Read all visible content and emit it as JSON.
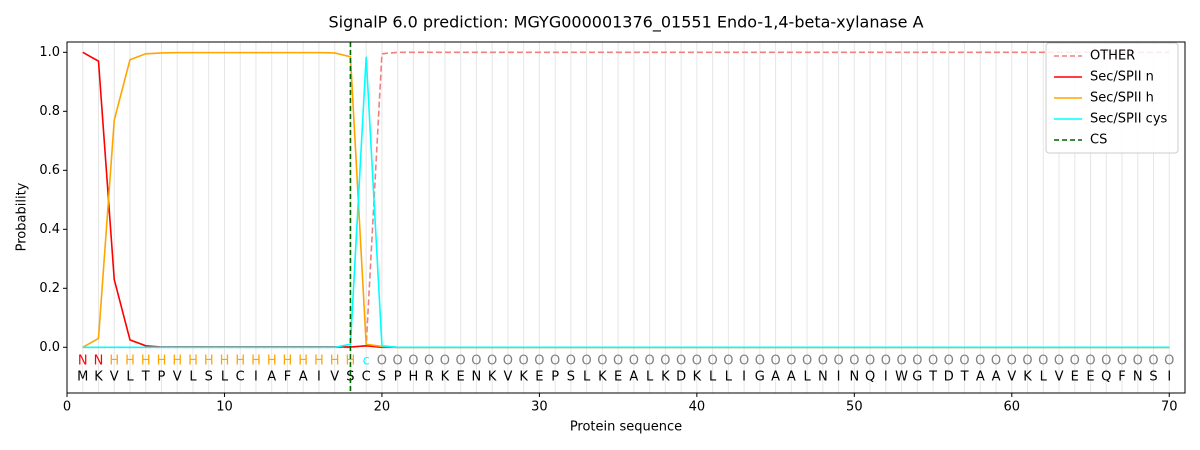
{
  "chart_data": {
    "type": "line",
    "title": "SignalP 6.0 prediction: MGYG000001376_01551 Endo-1,4-beta-xylanase A",
    "xlabel": "Protein sequence",
    "ylabel": "Probability",
    "x": [
      1,
      2,
      3,
      4,
      5,
      6,
      7,
      8,
      9,
      10,
      11,
      12,
      13,
      14,
      15,
      16,
      17,
      18,
      19,
      20,
      21,
      22,
      23,
      24,
      25,
      26,
      27,
      28,
      29,
      30,
      31,
      32,
      33,
      34,
      35,
      36,
      37,
      38,
      39,
      40,
      41,
      42,
      43,
      44,
      45,
      46,
      47,
      48,
      49,
      50,
      51,
      52,
      53,
      54,
      55,
      56,
      57,
      58,
      59,
      60,
      61,
      62,
      63,
      64,
      65,
      66,
      67,
      68,
      69,
      70
    ],
    "sequence": [
      "M",
      "K",
      "V",
      "L",
      "T",
      "P",
      "V",
      "L",
      "S",
      "L",
      "C",
      "I",
      "A",
      "F",
      "A",
      "I",
      "V",
      "S",
      "C",
      "S",
      "P",
      "H",
      "R",
      "K",
      "E",
      "N",
      "K",
      "V",
      "K",
      "E",
      "P",
      "S",
      "L",
      "K",
      "E",
      "A",
      "L",
      "K",
      "D",
      "K",
      "L",
      "L",
      "I",
      "G",
      "A",
      "A",
      "L",
      "N",
      "I",
      "N",
      "Q",
      "I",
      "W",
      "G",
      "T",
      "D",
      "T",
      "A",
      "A",
      "V",
      "K",
      "L",
      "V",
      "E",
      "E",
      "Q",
      "F",
      "N",
      "S",
      "I"
    ],
    "labels": [
      "N",
      "N",
      "H",
      "H",
      "H",
      "H",
      "H",
      "H",
      "H",
      "H",
      "H",
      "H",
      "H",
      "H",
      "H",
      "H",
      "H",
      "H",
      "c",
      "O",
      "O",
      "O",
      "O",
      "O",
      "O",
      "O",
      "O",
      "O",
      "O",
      "O",
      "O",
      "O",
      "O",
      "O",
      "O",
      "O",
      "O",
      "O",
      "O",
      "O",
      "O",
      "O",
      "O",
      "O",
      "O",
      "O",
      "O",
      "O",
      "O",
      "O",
      "O",
      "O",
      "O",
      "O",
      "O",
      "O",
      "O",
      "O",
      "O",
      "O",
      "O",
      "O",
      "O",
      "O",
      "O",
      "O",
      "O",
      "O",
      "O",
      "O"
    ],
    "label_colors": {
      "N": "red",
      "H": "orange",
      "c": "cyan",
      "O": "gray"
    },
    "series": [
      {
        "name": "OTHER",
        "color": "#f08080",
        "dash": true,
        "values": [
          0,
          0,
          0,
          0,
          0,
          0,
          0,
          0,
          0,
          0,
          0,
          0,
          0,
          0,
          0,
          0,
          0,
          0,
          0.005,
          0.995,
          1,
          1,
          1,
          1,
          1,
          1,
          1,
          1,
          1,
          1,
          1,
          1,
          1,
          1,
          1,
          1,
          1,
          1,
          1,
          1,
          1,
          1,
          1,
          1,
          1,
          1,
          1,
          1,
          1,
          1,
          1,
          1,
          1,
          1,
          1,
          1,
          1,
          1,
          1,
          1,
          1,
          1,
          1,
          1,
          1,
          1,
          1,
          1,
          1,
          1
        ]
      },
      {
        "name": "Sec/SPII n",
        "color": "#ff0000",
        "dash": false,
        "values": [
          1,
          0.97,
          0.23,
          0.025,
          0.005,
          0.001,
          0.001,
          0.001,
          0.001,
          0.001,
          0.001,
          0.001,
          0.001,
          0.001,
          0.001,
          0.001,
          0.001,
          0.001,
          0.005,
          0,
          0,
          0,
          0,
          0,
          0,
          0,
          0,
          0,
          0,
          0,
          0,
          0,
          0,
          0,
          0,
          0,
          0,
          0,
          0,
          0,
          0,
          0,
          0,
          0,
          0,
          0,
          0,
          0,
          0,
          0,
          0,
          0,
          0,
          0,
          0,
          0,
          0,
          0,
          0,
          0,
          0,
          0,
          0,
          0,
          0,
          0,
          0,
          0,
          0,
          0
        ]
      },
      {
        "name": "Sec/SPII h",
        "color": "#ffa500",
        "dash": false,
        "values": [
          0,
          0.03,
          0.77,
          0.975,
          0.995,
          0.998,
          0.999,
          0.999,
          0.999,
          0.999,
          0.999,
          0.999,
          0.999,
          0.999,
          0.999,
          0.999,
          0.998,
          0.985,
          0.01,
          0.003,
          0,
          0,
          0,
          0,
          0,
          0,
          0,
          0,
          0,
          0,
          0,
          0,
          0,
          0,
          0,
          0,
          0,
          0,
          0,
          0,
          0,
          0,
          0,
          0,
          0,
          0,
          0,
          0,
          0,
          0,
          0,
          0,
          0,
          0,
          0,
          0,
          0,
          0,
          0,
          0,
          0,
          0,
          0,
          0,
          0,
          0,
          0,
          0,
          0,
          0
        ]
      },
      {
        "name": "Sec/SPII cys",
        "color": "#00ffff",
        "dash": false,
        "values": [
          0,
          0,
          0,
          0,
          0,
          0,
          0,
          0,
          0,
          0,
          0,
          0,
          0,
          0,
          0,
          0,
          0,
          0.01,
          0.985,
          0.005,
          0,
          0,
          0,
          0,
          0,
          0,
          0,
          0,
          0,
          0,
          0,
          0,
          0,
          0,
          0,
          0,
          0,
          0,
          0,
          0,
          0,
          0,
          0,
          0,
          0,
          0,
          0,
          0,
          0,
          0,
          0,
          0,
          0,
          0,
          0,
          0,
          0,
          0,
          0,
          0,
          0,
          0,
          0,
          0,
          0,
          0,
          0,
          0,
          0,
          0
        ]
      }
    ],
    "cs": {
      "name": "CS",
      "x": 18,
      "color": "#006400"
    },
    "xlim": [
      0,
      71
    ],
    "ylim": [
      -0.155,
      1.035
    ],
    "xticks": [
      0,
      10,
      20,
      30,
      40,
      50,
      60,
      70
    ],
    "yticks": [
      {
        "value": 0,
        "label": "0.0"
      },
      0.2,
      0.4,
      0.6,
      0.8,
      {
        "value": 1,
        "label": "1.0"
      }
    ],
    "legend": "upper right"
  }
}
